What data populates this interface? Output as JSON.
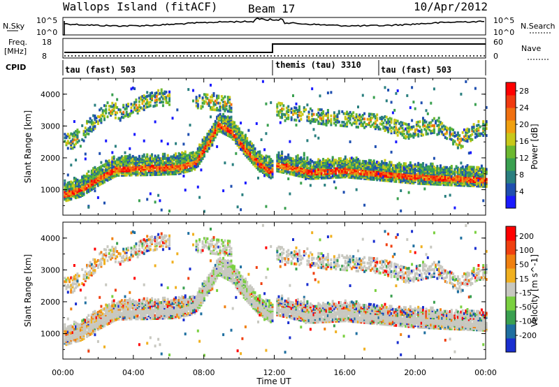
{
  "header": {
    "station": "Wallops Island (fitACF)",
    "beam": "Beam 17",
    "date": "10/Apr/2012"
  },
  "top_panels": {
    "nsky_label": "N.Sky",
    "nsky_tick_top": "10^5",
    "nsky_tick_bottom": "10^0",
    "nsearch_label": "N.Search",
    "freq_label_1": "Freq.",
    "freq_label_2": "[MHz]",
    "freq_tick_top": "18",
    "freq_tick_bottom": "8",
    "nave_label": "Nave",
    "nave_tick_top": "60",
    "nave_tick_bottom": "0",
    "cpid_label": "CPID",
    "cpid_segments": [
      {
        "label": "tau (fast) 503",
        "start_hour": 0
      },
      {
        "label": "themis (tau) 3310",
        "start_hour": 12
      },
      {
        "label": "tau (fast) 503",
        "start_hour": 18
      }
    ]
  },
  "chart_data": [
    {
      "type": "heatmap",
      "title": "",
      "quantity": "Power",
      "ylabel": "Slant Range [km]",
      "xlabel": "Time UT",
      "xlim": [
        0,
        24
      ],
      "ylim": [
        200,
        4500
      ],
      "x_ticks": [
        "00:00",
        "04:00",
        "08:00",
        "12:00",
        "16:00",
        "20:00",
        "00:00"
      ],
      "y_ticks": [
        "1000",
        "2000",
        "3000",
        "4000"
      ],
      "colorbar": {
        "label": "Power [dB]",
        "ticks": [
          "4",
          "8",
          "12",
          "16",
          "20",
          "24",
          "28"
        ],
        "range": [
          0,
          30
        ],
        "colors": [
          "#1a1aff",
          "#1f4fb0",
          "#2a7f7f",
          "#3aa050",
          "#6cb830",
          "#c8c81a",
          "#f0a010",
          "#f07010",
          "#f03a10",
          "#ff0000"
        ]
      },
      "echo_bands": [
        {
          "name": "lower-band",
          "points": [
            [
              0.1,
              800
            ],
            [
              1,
              950
            ],
            [
              2,
              1300
            ],
            [
              3,
              1600
            ],
            [
              5,
              1620
            ],
            [
              6.5,
              1650
            ],
            [
              7.5,
              1800
            ],
            [
              8.2,
              2400
            ],
            [
              8.8,
              3000
            ],
            [
              9.5,
              2800
            ],
            [
              10.2,
              2300
            ],
            [
              11,
              1800
            ],
            [
              11.8,
              1500
            ],
            [
              12,
              1750
            ],
            [
              14,
              1500
            ],
            [
              16,
              1550
            ],
            [
              18,
              1450
            ],
            [
              20,
              1350
            ],
            [
              22,
              1300
            ],
            [
              24,
              1250
            ]
          ]
        },
        {
          "name": "upper-band",
          "points": [
            [
              0.5,
              2500
            ],
            [
              1.5,
              3000
            ],
            [
              2.5,
              3500
            ],
            [
              3.5,
              3400
            ],
            [
              4.5,
              3700
            ],
            [
              5.5,
              3900
            ],
            [
              12,
              3500
            ],
            [
              14,
              3300
            ],
            [
              16,
              3200
            ],
            [
              18,
              3100
            ],
            [
              19.5,
              2800
            ],
            [
              21,
              3000
            ],
            [
              22.5,
              2500
            ],
            [
              23.5,
              2900
            ]
          ]
        }
      ]
    },
    {
      "type": "heatmap",
      "title": "",
      "quantity": "Velocity",
      "ylabel": "Slant Range [km]",
      "xlabel": "Time UT",
      "xlim": [
        0,
        24
      ],
      "ylim": [
        200,
        4500
      ],
      "x_ticks": [
        "00:00",
        "04:00",
        "08:00",
        "12:00",
        "16:00",
        "20:00",
        "00:00"
      ],
      "y_ticks": [
        "1000",
        "2000",
        "3000",
        "4000"
      ],
      "colorbar": {
        "label": "Velocity [m s^-1]",
        "ticks": [
          "200",
          "100",
          "50",
          "15",
          "-15",
          "-50",
          "-100",
          "-200"
        ],
        "range": [
          -250,
          250
        ],
        "colors": [
          "#1a2fd0",
          "#1f6fa0",
          "#3aa050",
          "#7ad040",
          "#c8c8c0",
          "#f0b020",
          "#f08010",
          "#f04010",
          "#ff0000"
        ]
      }
    }
  ]
}
